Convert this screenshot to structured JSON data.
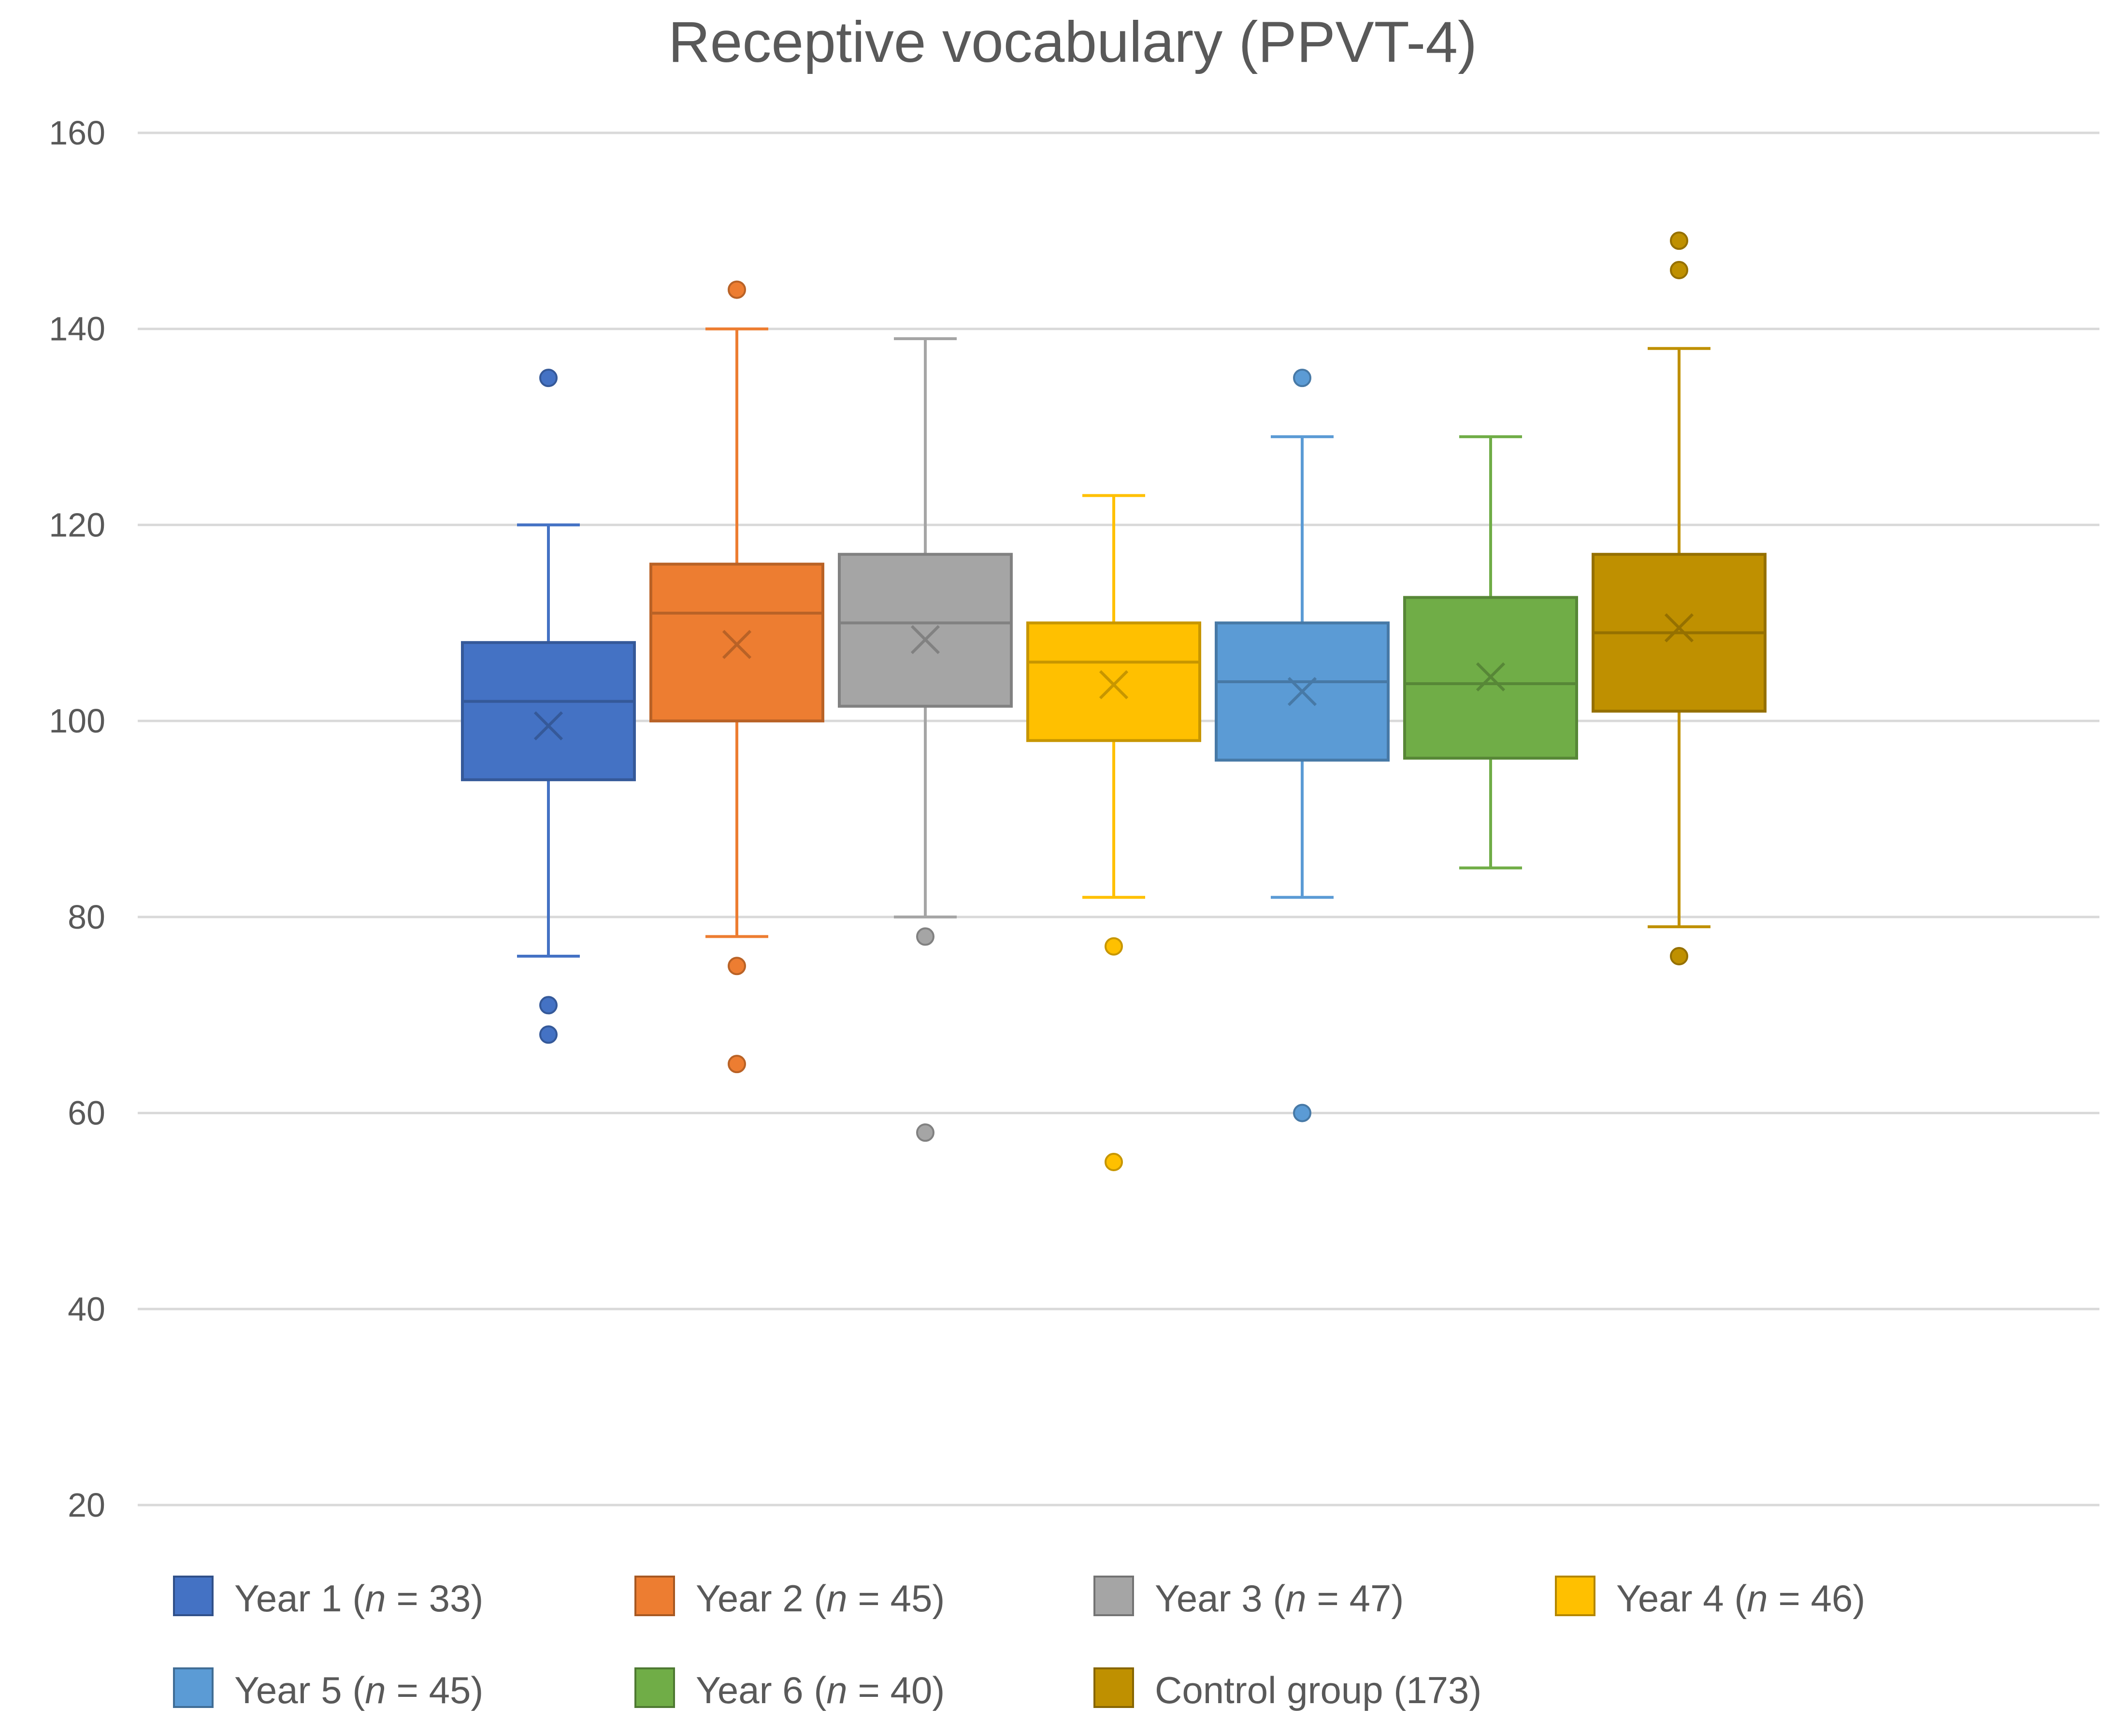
{
  "chart_data": {
    "type": "boxplot",
    "title": "Receptive vocabulary (PPVT-4)",
    "xlabel": "",
    "ylabel": "",
    "ylim": [
      20,
      160
    ],
    "yticks": [
      20,
      40,
      60,
      80,
      100,
      120,
      140,
      160
    ],
    "grid": true,
    "legend_position": "bottom",
    "series": [
      {
        "name": "Year 1",
        "n_label": "n",
        "n_rest": " = 33)",
        "color": "#4472C4",
        "whisker_low": 76,
        "q1": 94,
        "median": 102,
        "q3": 108,
        "whisker_high": 120,
        "mean": 99.5,
        "outliers": [
          135,
          71,
          68
        ]
      },
      {
        "name": "Year 2",
        "n_label": "n",
        "n_rest": " = 45)",
        "color": "#ED7D31",
        "whisker_low": 78,
        "q1": 100,
        "median": 111,
        "q3": 116,
        "whisker_high": 140,
        "mean": 107.8,
        "outliers": [
          144,
          75,
          65
        ]
      },
      {
        "name": "Year 3",
        "n_label": "n",
        "n_rest": " = 47)",
        "color": "#A5A5A5",
        "whisker_low": 80,
        "q1": 101.5,
        "median": 110,
        "q3": 117,
        "whisker_high": 139,
        "mean": 108.3,
        "outliers": [
          78,
          58
        ]
      },
      {
        "name": "Year 4",
        "n_label": "n",
        "n_rest": " = 46)",
        "color": "#FFC000",
        "whisker_low": 82,
        "q1": 98,
        "median": 106,
        "q3": 110,
        "whisker_high": 123,
        "mean": 103.7,
        "outliers": [
          77,
          55
        ]
      },
      {
        "name": "Year 5",
        "n_label": "n",
        "n_rest": " = 45)",
        "color": "#5B9BD5",
        "whisker_low": 82,
        "q1": 96,
        "median": 104,
        "q3": 110,
        "whisker_high": 129,
        "mean": 103,
        "outliers": [
          135,
          60
        ]
      },
      {
        "name": "Year 6",
        "n_label": "n",
        "n_rest": " = 40)",
        "color": "#70AD47",
        "whisker_low": 85,
        "q1": 96.2,
        "median": 103.8,
        "q3": 112.6,
        "whisker_high": 129,
        "mean": 104.5,
        "outliers": []
      },
      {
        "name": "Control group",
        "n_label": "",
        "n_rest": "(173)",
        "color": "#BF9000",
        "whisker_low": 79,
        "q1": 101,
        "median": 109,
        "q3": 117,
        "whisker_high": 138,
        "mean": 109.5,
        "outliers": [
          149,
          146,
          76
        ]
      }
    ]
  }
}
